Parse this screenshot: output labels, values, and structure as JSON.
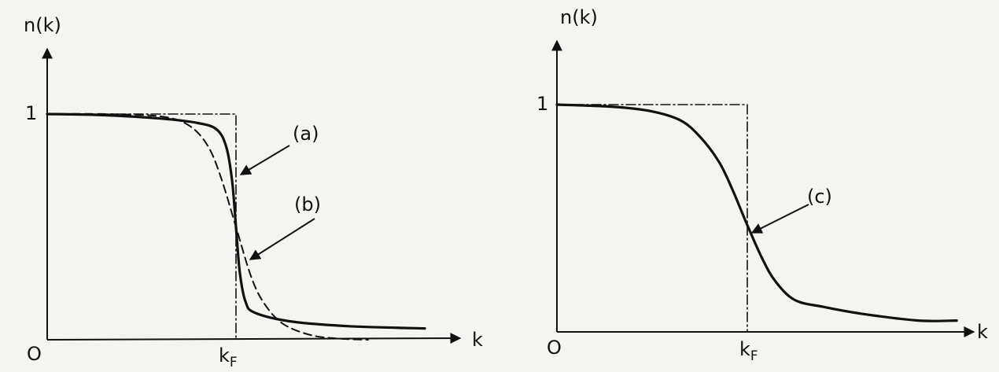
{
  "chart_data": [
    {
      "type": "line",
      "panel": "left",
      "title": "",
      "xlabel": "k",
      "ylabel": "n(k)",
      "origin_label": "O",
      "y_tick_label": "1",
      "x_tick_label": {
        "main": "k",
        "sub": "F"
      },
      "xlim": [
        0,
        2.25
      ],
      "ylim": [
        0,
        1.1
      ],
      "series": [
        {
          "style": "dash-dot",
          "x": [
            0,
            1,
            1,
            1
          ],
          "y": [
            1,
            1,
            0.5,
            0
          ]
        },
        {
          "label": "(a)",
          "style": "solid",
          "x": [
            0,
            0.3,
            0.6,
            0.8,
            0.9,
            0.95,
            0.98,
            1.0,
            1.02,
            1.05,
            1.1,
            1.3,
            1.6,
            2.0
          ],
          "y": [
            1.0,
            0.995,
            0.98,
            0.96,
            0.93,
            0.85,
            0.7,
            0.5,
            0.3,
            0.17,
            0.12,
            0.08,
            0.06,
            0.05
          ]
        },
        {
          "label": "(b)",
          "style": "dashed",
          "x": [
            0,
            0.3,
            0.6,
            0.75,
            0.85,
            0.92,
            1.0,
            1.08,
            1.15,
            1.25,
            1.4,
            1.55,
            1.7
          ],
          "y": [
            1.0,
            1.0,
            0.99,
            0.95,
            0.86,
            0.72,
            0.5,
            0.28,
            0.16,
            0.07,
            0.02,
            0.005,
            0.0
          ]
        }
      ]
    },
    {
      "type": "line",
      "panel": "right",
      "title": "",
      "xlabel": "k",
      "ylabel": "n(k)",
      "origin_label": "O",
      "y_tick_label": "1",
      "x_tick_label": {
        "main": "k",
        "sub": "F"
      },
      "xlim": [
        0,
        2.25
      ],
      "ylim": [
        0,
        1.1
      ],
      "series": [
        {
          "style": "dash-dot",
          "x": [
            0,
            1,
            1,
            1
          ],
          "y": [
            1,
            1,
            0.5,
            0
          ]
        },
        {
          "label": "(c)",
          "style": "solid",
          "x": [
            0,
            0.3,
            0.5,
            0.65,
            0.75,
            0.85,
            0.92,
            1.0,
            1.08,
            1.15,
            1.25,
            1.4,
            1.6,
            1.9,
            2.1
          ],
          "y": [
            1.0,
            0.99,
            0.97,
            0.93,
            0.86,
            0.75,
            0.63,
            0.47,
            0.32,
            0.22,
            0.14,
            0.11,
            0.08,
            0.05,
            0.05
          ]
        }
      ]
    }
  ]
}
